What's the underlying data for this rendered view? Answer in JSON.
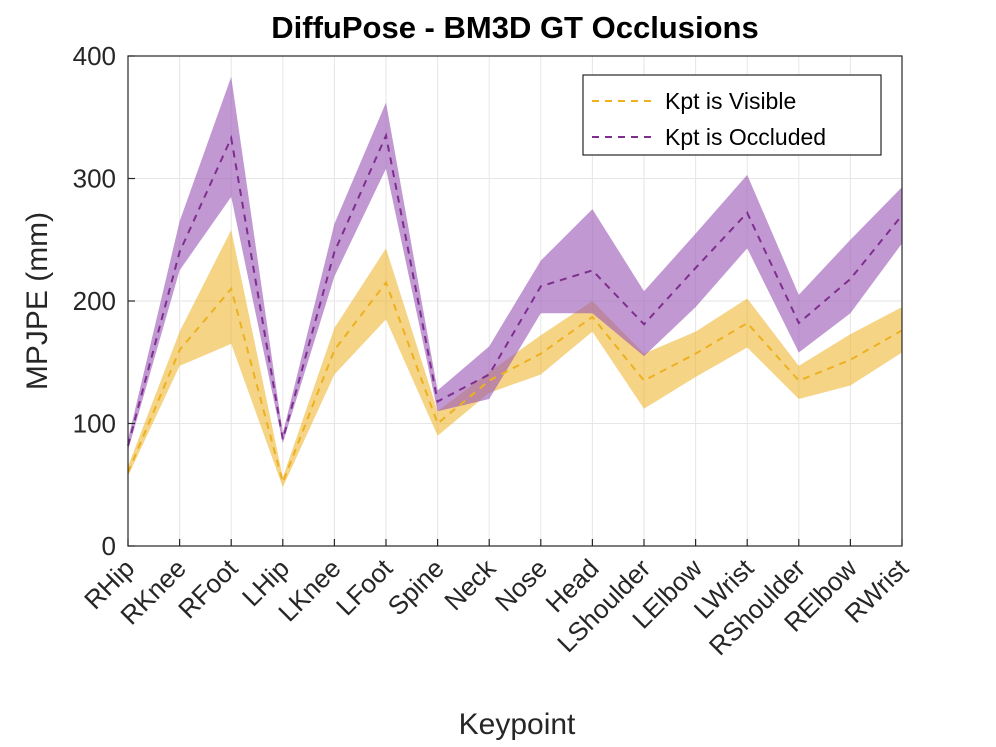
{
  "chart_data": {
    "type": "line",
    "title": "DiffuPose - BM3D GT Occlusions",
    "xlabel": "Keypoint",
    "ylabel": "MPJPE (mm)",
    "ylim": [
      0,
      400
    ],
    "yticks": [
      0,
      100,
      200,
      300,
      400
    ],
    "grid": true,
    "legend_position": "top-right",
    "categories": [
      "RHip",
      "RKnee",
      "RFoot",
      "LHip",
      "LKnee",
      "LFoot",
      "Spine",
      "Neck",
      "Nose",
      "Head",
      "LShoulder",
      "LElbow",
      "LWrist",
      "RShoulder",
      "RElbow",
      "RWrist"
    ],
    "series": [
      {
        "name": "Kpt is Visible",
        "color": "#EDB120",
        "band_color": "#EDB120",
        "line_style": "dashed",
        "values": [
          60,
          160,
          210,
          52,
          160,
          215,
          100,
          135,
          157,
          187,
          135,
          157,
          182,
          135,
          152,
          176
        ],
        "lower": [
          57,
          147,
          165,
          48,
          140,
          185,
          90,
          125,
          140,
          175,
          112,
          138,
          162,
          120,
          131,
          158
        ],
        "upper": [
          65,
          175,
          258,
          56,
          178,
          243,
          110,
          142,
          172,
          200,
          157,
          175,
          202,
          147,
          173,
          195
        ]
      },
      {
        "name": "Kpt is Occluded",
        "color": "#7E2F8E",
        "band_color": "#9B59B6",
        "line_style": "dashed",
        "values": [
          82,
          240,
          333,
          87,
          240,
          335,
          118,
          140,
          212,
          225,
          181,
          227,
          272,
          182,
          218,
          270
        ],
        "lower": [
          78,
          225,
          285,
          84,
          220,
          308,
          110,
          120,
          190,
          190,
          155,
          195,
          243,
          158,
          190,
          247
        ],
        "upper": [
          87,
          265,
          383,
          92,
          263,
          362,
          127,
          163,
          233,
          275,
          208,
          255,
          303,
          205,
          250,
          293
        ]
      }
    ]
  }
}
